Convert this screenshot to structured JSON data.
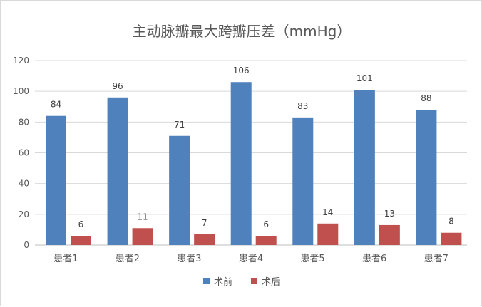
{
  "chart_data": {
    "type": "bar",
    "title": "主动脉瓣最大跨瓣压差（mmHg）",
    "categories": [
      "患者1",
      "患者2",
      "患者3",
      "患者4",
      "患者5",
      "患者6",
      "患者7"
    ],
    "series": [
      {
        "name": "术前",
        "values": [
          84,
          96,
          71,
          106,
          83,
          101,
          88
        ],
        "color": "#4f81bd"
      },
      {
        "name": "术后",
        "values": [
          6,
          11,
          7,
          6,
          14,
          13,
          8
        ],
        "color": "#c0504d"
      }
    ],
    "ylim": [
      0,
      120
    ],
    "yticks": [
      "0",
      "20",
      "40",
      "60",
      "80",
      "100",
      "120"
    ],
    "grid": true,
    "legend": "bottom"
  }
}
